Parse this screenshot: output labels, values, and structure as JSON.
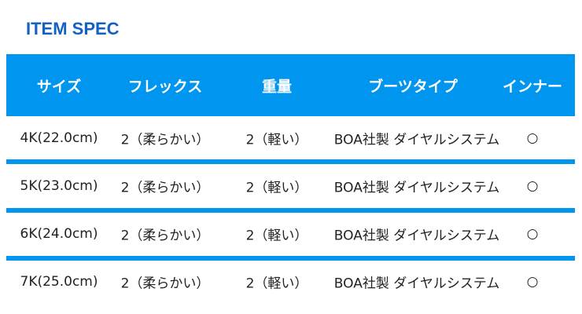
{
  "title": "ITEM SPEC",
  "colors": {
    "header": "#0096f0",
    "title": "#1461c4"
  },
  "columns": [
    "サイズ",
    "フレックス",
    "重量",
    "ブーツタイプ",
    "インナー"
  ],
  "rows": [
    [
      "4K(22.0cm)",
      "2（柔らかい）",
      "2（軽い）",
      "BOA社製 ダイヤルシステム",
      "○"
    ],
    [
      "5K(23.0cm)",
      "2（柔らかい）",
      "2（軽い）",
      "BOA社製 ダイヤルシステム",
      "○"
    ],
    [
      "6K(24.0cm)",
      "2（柔らかい）",
      "2（軽い）",
      "BOA社製 ダイヤルシステム",
      "○"
    ],
    [
      "7K(25.0cm)",
      "2（柔らかい）",
      "2（軽い）",
      "BOA社製 ダイヤルシステム",
      "○"
    ]
  ]
}
